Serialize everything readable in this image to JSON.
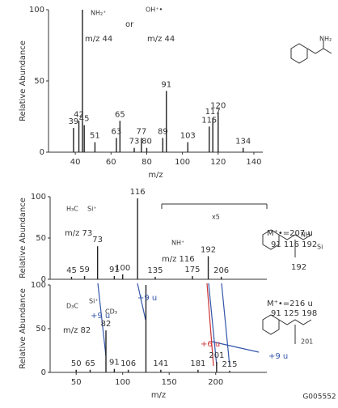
{
  "chart_data": [
    {
      "type": "bar",
      "y_label": "Relative Abundance",
      "x_label": "m/z",
      "color": "#222222",
      "xlim": [
        25,
        145
      ],
      "xticks": [
        40,
        60,
        80,
        100,
        120,
        140
      ],
      "ylim": [
        0,
        100
      ],
      "yticks": [
        0,
        50,
        100
      ],
      "x": [
        39,
        42,
        44,
        45,
        51,
        63,
        65,
        73,
        77,
        80,
        89,
        91,
        103,
        115,
        117,
        120,
        134
      ],
      "values": [
        17,
        22,
        100,
        19,
        7,
        10,
        22,
        3,
        10,
        3,
        10,
        43,
        7,
        18,
        24,
        28,
        3
      ],
      "annotations": [
        "m/z 44",
        "or",
        "m/z 44",
        "NH₂⁺",
        "OH⁺•",
        "NH₂"
      ]
    },
    {
      "type": "bar",
      "y_label": "Relative Abundance",
      "color": "#222222",
      "xlim": [
        22,
        255
      ],
      "ylim": [
        0,
        100
      ],
      "yticks": [
        0,
        50,
        100
      ],
      "x": [
        45,
        59,
        73,
        91,
        100,
        116,
        135,
        175,
        192,
        206
      ],
      "values": [
        3,
        4,
        40,
        4,
        6,
        98,
        3,
        4,
        28,
        3
      ],
      "annotations": [
        "x5",
        "M⁺•=207 u",
        "91 116 192",
        "192",
        "m/z 73",
        "m/z 116",
        "H₃C",
        "Si⁺",
        "NH⁺",
        "NH",
        "Si"
      ]
    },
    {
      "type": "bar",
      "y_label": "Relative Abundance",
      "x_label": "m/z",
      "color": "#222222",
      "xlim": [
        22,
        255
      ],
      "xticks": [
        50,
        100,
        150,
        200
      ],
      "ylim": [
        0,
        100
      ],
      "yticks": [
        0,
        50,
        100
      ],
      "x": [
        50,
        65,
        82,
        91,
        106,
        125,
        141,
        181,
        201,
        215
      ],
      "values": [
        3,
        3,
        48,
        4,
        3,
        100,
        3,
        3,
        12,
        2
      ],
      "annotations": [
        "M⁺•=216 u",
        "91 125 198",
        "201",
        "m/z 82",
        "+9 u",
        "+9 u",
        "+9 u",
        "+6 u",
        "D₃C",
        "CD₃",
        "Si⁺"
      ]
    }
  ],
  "footer": {
    "code": "G005552"
  }
}
